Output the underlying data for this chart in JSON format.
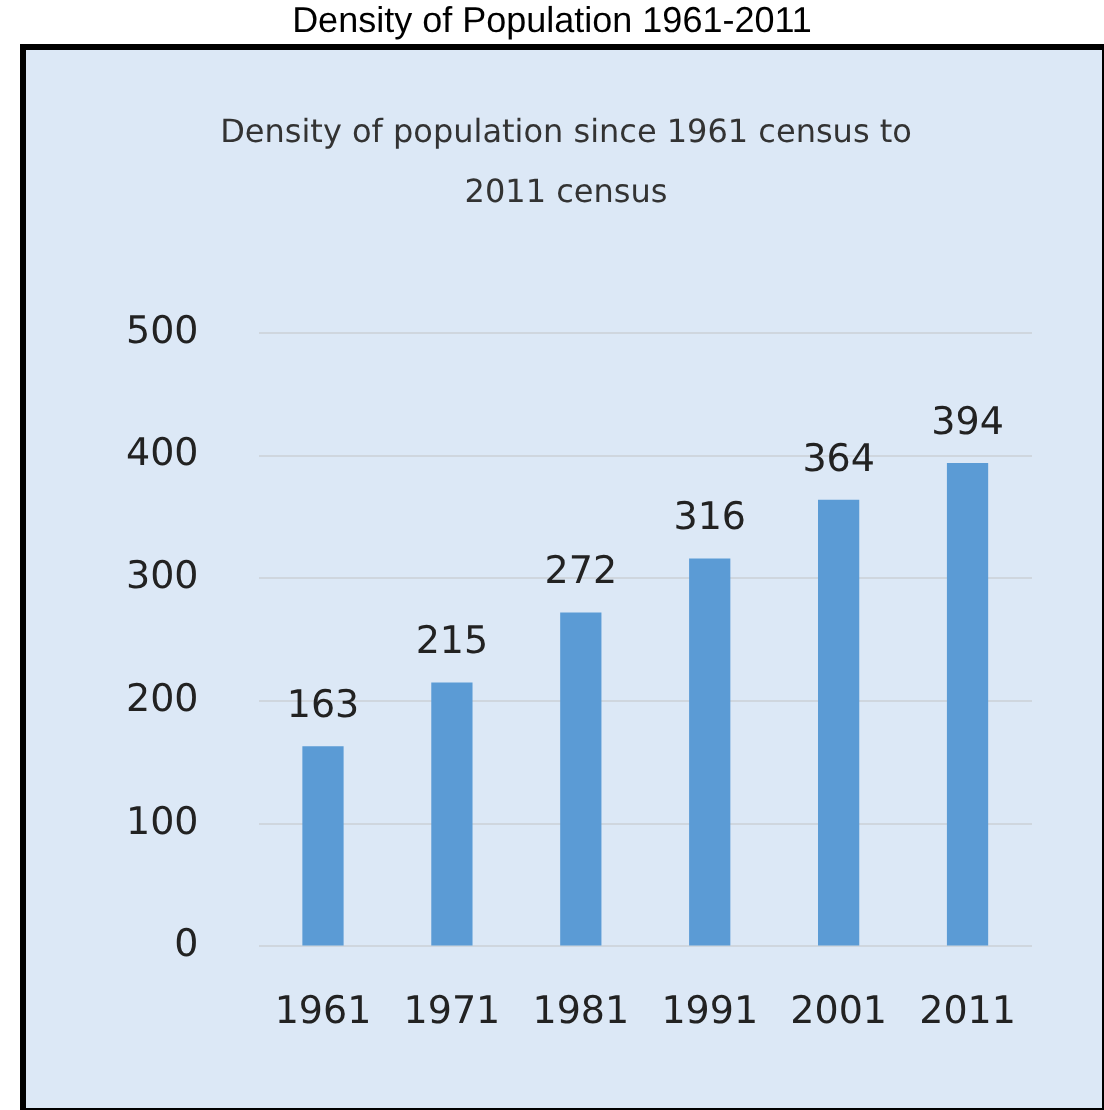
{
  "chart_data": {
    "type": "bar",
    "title": "Density of Population 1961-2011",
    "subtitle": "Density of population since 1961 census to 2011 census",
    "categories": [
      "1961",
      "1971",
      "1981",
      "1991",
      "2001",
      "2011"
    ],
    "values": [
      163,
      215,
      272,
      316,
      364,
      394
    ],
    "color": "#5b9bd5",
    "ylim": [
      0,
      500
    ],
    "yticks": [
      0,
      100,
      200,
      300,
      400,
      500
    ],
    "grid": "y",
    "data_labels": true,
    "legend": false
  }
}
